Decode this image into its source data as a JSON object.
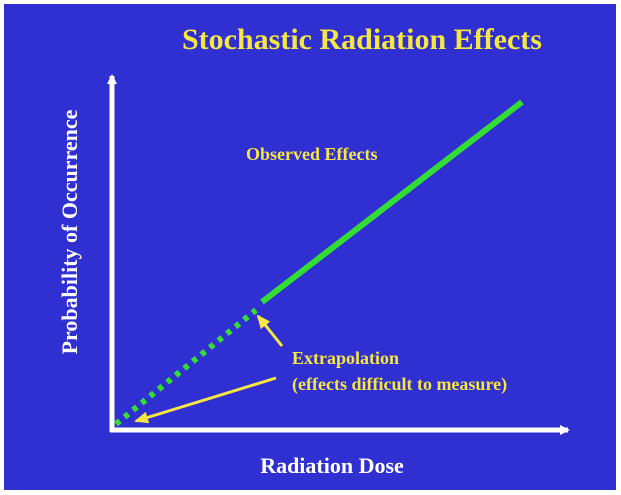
{
  "title": "Stochastic Radiation Effects",
  "y_axis_label": "Probability of Occurrence",
  "x_axis_label": "Radiation Dose",
  "annotations": {
    "observed": "Observed Effects",
    "extrapolation": "Extrapolation",
    "extrapolation_note": "(effects difficult to measure)"
  }
}
